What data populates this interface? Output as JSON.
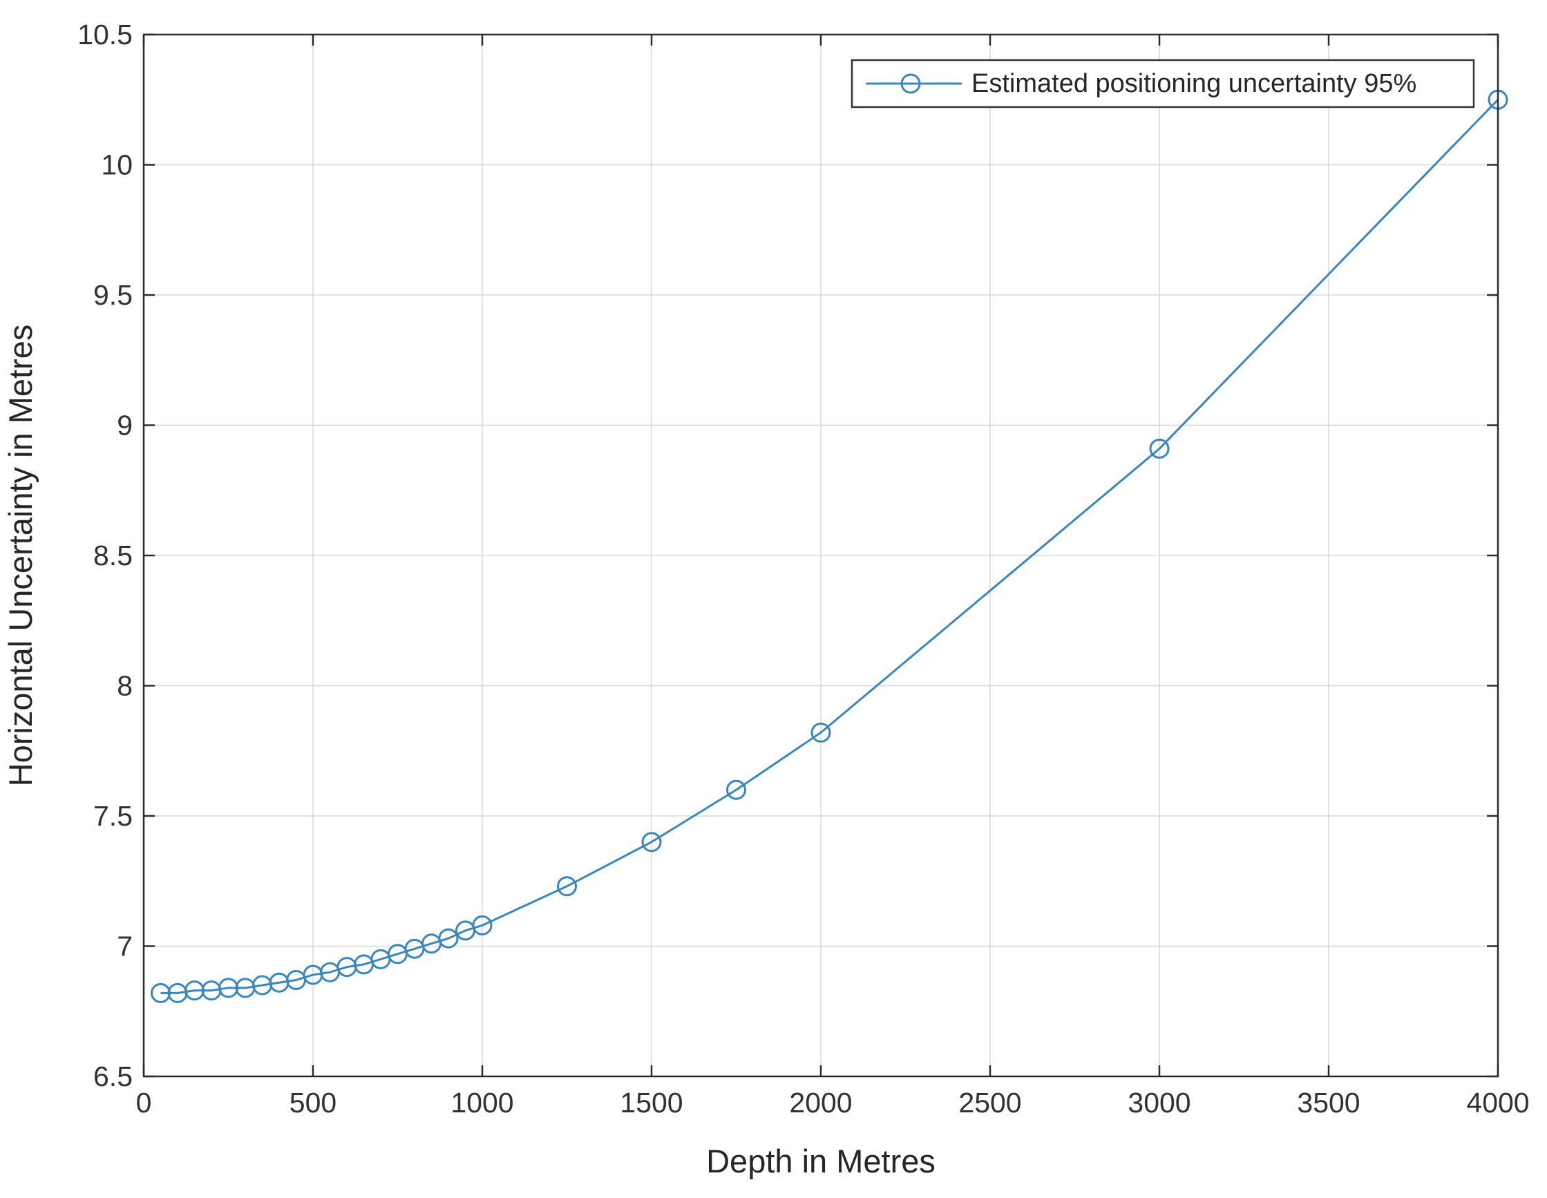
{
  "figure": {
    "background_color": "#ffffff",
    "axis_box_color": "#2b2b2b",
    "grid_color": "#d8d8d8",
    "tick_label_color": "#323232"
  },
  "chart_data": {
    "type": "line",
    "title": "",
    "xlabel": "Depth in Metres",
    "ylabel": "Horizontal Uncertainty in Metres",
    "xlim": [
      0,
      4000
    ],
    "ylim": [
      6.5,
      10.5
    ],
    "x_ticks": [
      0,
      500,
      1000,
      1500,
      2000,
      2500,
      3000,
      3500,
      4000
    ],
    "y_ticks": [
      6.5,
      7,
      7.5,
      8,
      8.5,
      9,
      9.5,
      10,
      10.5
    ],
    "grid": true,
    "legend": {
      "position": "top-right",
      "border": true,
      "background": "#ffffff"
    },
    "series": [
      {
        "name": "Estimated positioning uncertainty 95%",
        "color": "#3a86be",
        "marker": "circle",
        "marker_fill": "none",
        "x": [
          50,
          100,
          150,
          200,
          250,
          300,
          350,
          400,
          450,
          500,
          550,
          600,
          650,
          700,
          750,
          800,
          850,
          900,
          950,
          1000,
          1250,
          1500,
          1750,
          2000,
          3000,
          4000
        ],
        "y": [
          6.82,
          6.82,
          6.83,
          6.83,
          6.84,
          6.84,
          6.85,
          6.86,
          6.87,
          6.89,
          6.9,
          6.92,
          6.93,
          6.95,
          6.97,
          6.99,
          7.01,
          7.03,
          7.06,
          7.08,
          7.23,
          7.4,
          7.6,
          7.82,
          8.91,
          10.25
        ]
      }
    ]
  }
}
